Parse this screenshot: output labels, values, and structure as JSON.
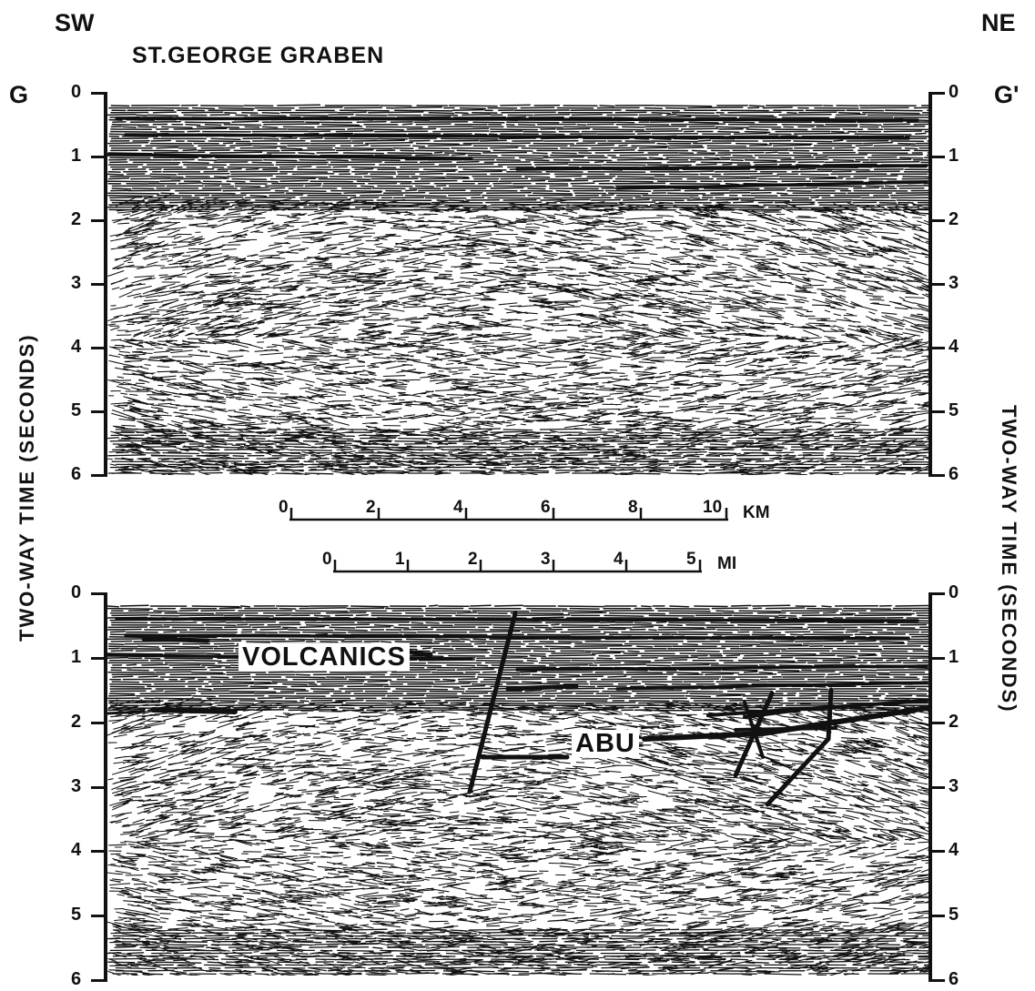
{
  "header": {
    "left_direction": "SW",
    "right_direction": "NE",
    "title": "ST.GEORGE GRABEN",
    "left_point": "G",
    "right_point": "G'"
  },
  "axis": {
    "label": "TWO-WAY TIME (SECONDS)",
    "ticks": [
      "0",
      "1",
      "2",
      "3",
      "4",
      "5",
      "6"
    ]
  },
  "scale_km": {
    "ticks": [
      "0",
      "2",
      "4",
      "6",
      "8",
      "10"
    ],
    "unit": "KM"
  },
  "scale_mi": {
    "ticks": [
      "0",
      "1",
      "2",
      "3",
      "4",
      "5"
    ],
    "unit": "MI"
  },
  "annotations": {
    "volcanics": "VOLCANICS",
    "abu": "ABU"
  },
  "colors": {
    "ink": "#111111",
    "paper": "#ffffff"
  }
}
